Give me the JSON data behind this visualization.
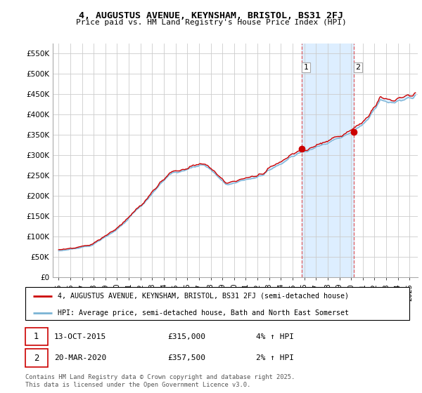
{
  "title": "4, AUGUSTUS AVENUE, KEYNSHAM, BRISTOL, BS31 2FJ",
  "subtitle": "Price paid vs. HM Land Registry's House Price Index (HPI)",
  "legend_line1": "4, AUGUSTUS AVENUE, KEYNSHAM, BRISTOL, BS31 2FJ (semi-detached house)",
  "legend_line2": "HPI: Average price, semi-detached house, Bath and North East Somerset",
  "footnote": "Contains HM Land Registry data © Crown copyright and database right 2025.\nThis data is licensed under the Open Government Licence v3.0.",
  "sale1_date": "13-OCT-2015",
  "sale1_price": 315000,
  "sale1_label": "4% ↑ HPI",
  "sale2_date": "20-MAR-2020",
  "sale2_price": 357500,
  "sale2_label": "2% ↑ HPI",
  "sale1_x": 2015.78,
  "sale2_x": 2020.22,
  "hpi_color": "#7ab3d4",
  "price_color": "#cc0000",
  "shade_color": "#ddeeff",
  "vline_color": "#dd4444",
  "ylim_min": 0,
  "ylim_max": 575000,
  "xlim_min": 1994.5,
  "xlim_max": 2025.7,
  "yticks": [
    0,
    50000,
    100000,
    150000,
    200000,
    250000,
    300000,
    350000,
    400000,
    450000,
    500000,
    550000
  ],
  "ytick_labels": [
    "£0",
    "£50K",
    "£100K",
    "£150K",
    "£200K",
    "£250K",
    "£300K",
    "£350K",
    "£400K",
    "£450K",
    "£500K",
    "£550K"
  ],
  "xticks": [
    1995,
    1996,
    1997,
    1998,
    1999,
    2000,
    2001,
    2002,
    2003,
    2004,
    2005,
    2006,
    2007,
    2008,
    2009,
    2010,
    2011,
    2012,
    2013,
    2014,
    2015,
    2016,
    2017,
    2018,
    2019,
    2020,
    2021,
    2022,
    2023,
    2024,
    2025
  ]
}
